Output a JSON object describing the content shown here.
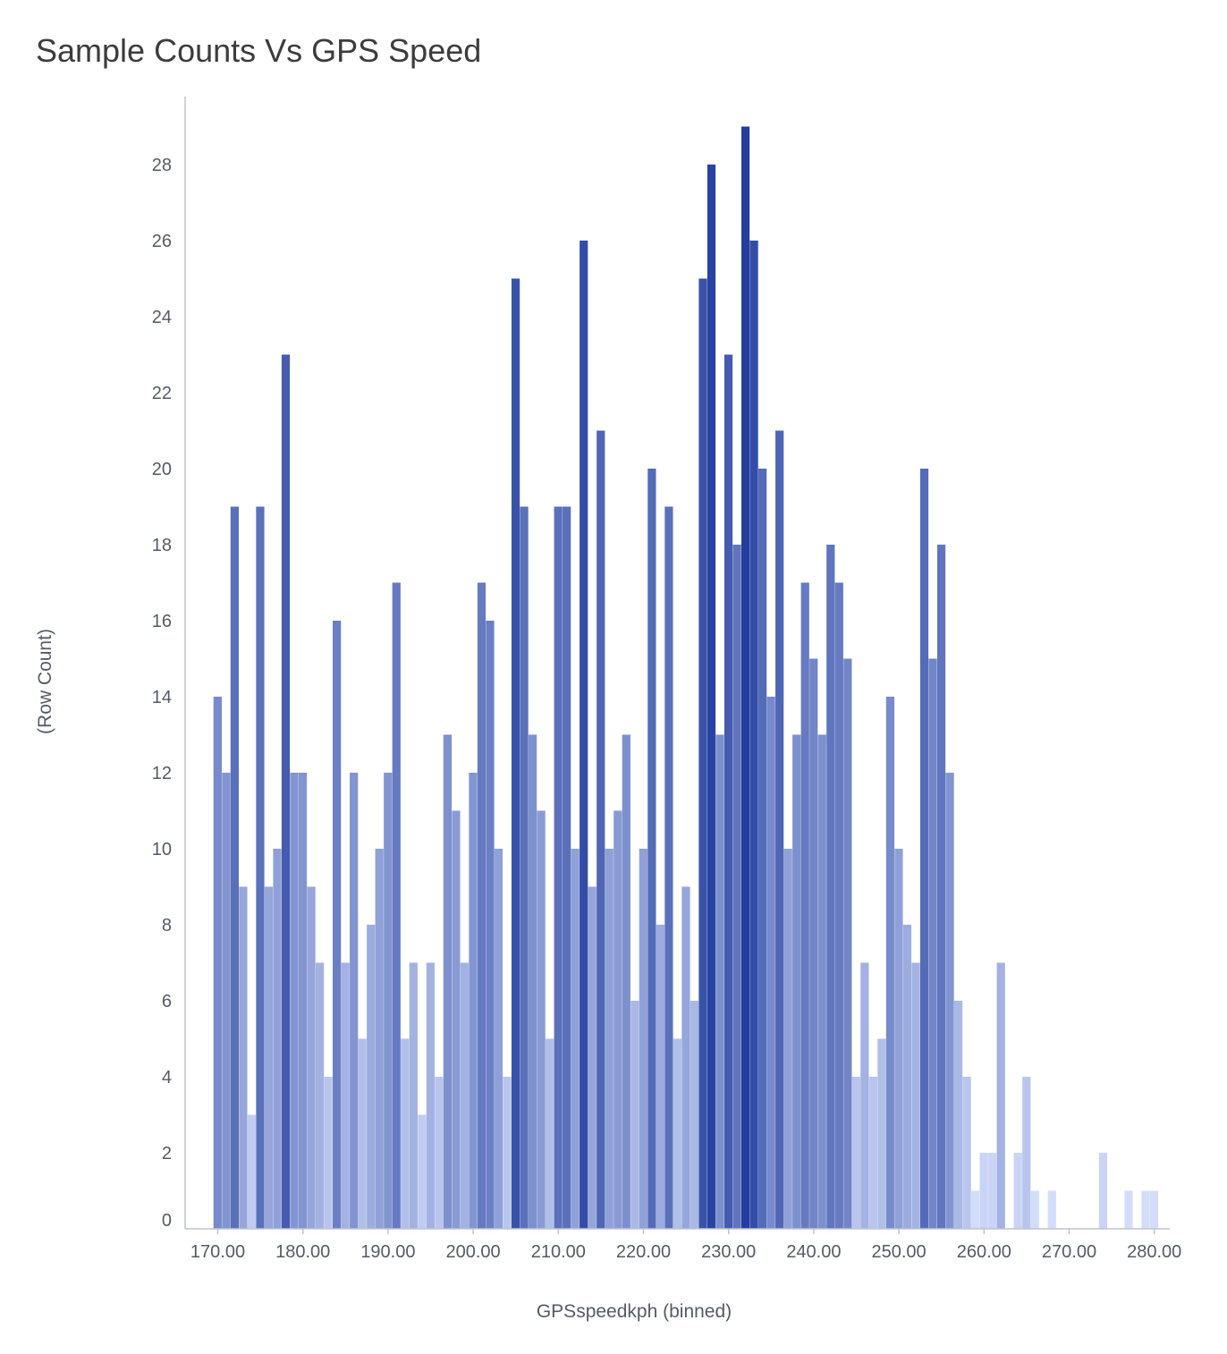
{
  "chart_data": {
    "type": "bar",
    "title": "Sample Counts Vs GPS Speed",
    "xlabel": "GPSspeedkph (binned)",
    "ylabel": "(Row Count)",
    "xlim": [
      166.5,
      286.5
    ],
    "ylim": [
      0,
      29.8
    ],
    "bin_width": 1,
    "x_ticks": [
      "170.00",
      "180.00",
      "190.00",
      "200.00",
      "210.00",
      "220.00",
      "230.00",
      "240.00",
      "250.00",
      "260.00",
      "270.00",
      "280.00"
    ],
    "x_tick_values": [
      170,
      180,
      190,
      200,
      210,
      220,
      230,
      240,
      250,
      260,
      270,
      280
    ],
    "y_ticks": [
      0,
      2,
      4,
      6,
      8,
      10,
      12,
      14,
      16,
      18,
      20,
      22,
      24,
      26,
      28
    ],
    "grid": false,
    "legend": "none",
    "color_scale": {
      "low": "#d3ddfb",
      "high": "#233e9e",
      "min_value": 1,
      "max_value": 29
    },
    "x": [
      170,
      171,
      172,
      173,
      174,
      175,
      176,
      177,
      178,
      179,
      180,
      181,
      182,
      183,
      184,
      185,
      186,
      187,
      188,
      189,
      190,
      191,
      192,
      193,
      194,
      195,
      196,
      197,
      198,
      199,
      200,
      201,
      202,
      203,
      204,
      205,
      206,
      207,
      208,
      209,
      210,
      211,
      212,
      213,
      214,
      215,
      216,
      217,
      218,
      219,
      220,
      221,
      222,
      223,
      224,
      225,
      226,
      227,
      228,
      229,
      230,
      231,
      232,
      233,
      234,
      235,
      236,
      237,
      238,
      239,
      240,
      241,
      242,
      243,
      244,
      245,
      246,
      247,
      248,
      249,
      250,
      251,
      252,
      253,
      254,
      255,
      256,
      257,
      258,
      259,
      260,
      261,
      262,
      263,
      264,
      265,
      266,
      267,
      268,
      269,
      270,
      271,
      272,
      273,
      274,
      275,
      276,
      277,
      278,
      279,
      280
    ],
    "values": [
      14,
      12,
      19,
      9,
      3,
      19,
      9,
      10,
      23,
      12,
      12,
      9,
      7,
      4,
      16,
      7,
      12,
      5,
      8,
      10,
      12,
      17,
      5,
      7,
      3,
      7,
      4,
      13,
      11,
      7,
      12,
      17,
      16,
      10,
      4,
      25,
      19,
      13,
      11,
      5,
      19,
      19,
      10,
      26,
      9,
      21,
      10,
      11,
      13,
      6,
      10,
      20,
      8,
      19,
      5,
      9,
      6,
      25,
      28,
      13,
      23,
      18,
      29,
      26,
      20,
      14,
      21,
      10,
      13,
      17,
      15,
      13,
      18,
      17,
      15,
      4,
      7,
      4,
      5,
      14,
      10,
      8,
      7,
      20,
      15,
      18,
      12,
      6,
      4,
      1,
      2,
      2,
      7,
      0,
      2,
      4,
      1,
      0,
      1,
      0,
      0,
      0,
      0,
      0,
      2,
      0,
      0,
      1,
      0,
      1,
      1
    ]
  }
}
